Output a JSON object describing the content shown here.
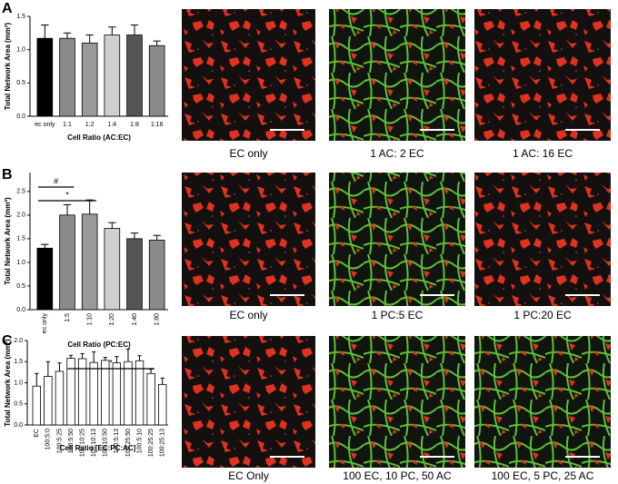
{
  "panels": [
    "A",
    "B",
    "C"
  ],
  "captions": [
    [
      "EC only",
      "1 AC: 2 EC",
      "1 AC: 16 EC"
    ],
    [
      "EC only",
      "1 PC:5 EC",
      "1 PC:20 EC"
    ],
    [
      "EC Only",
      "100 EC, 10 PC, 50 AC",
      "100 EC, 5 PC, 25 AC"
    ]
  ],
  "chart_data": [
    {
      "type": "bar",
      "ylabel": "Total Network Area (mm²)",
      "xlabel": "Cell Ratio (AC:EC)",
      "categories": [
        "ec only",
        "1:1",
        "1:2",
        "1:4",
        "1:8",
        "1:16"
      ],
      "values": [
        1.17,
        1.17,
        1.1,
        1.22,
        1.22,
        1.06
      ],
      "errors": [
        0.2,
        0.08,
        0.12,
        0.12,
        0.15,
        0.07
      ],
      "colors": [
        "#000000",
        "#8a8a8a",
        "#9a9a9a",
        "#cfcfcf",
        "#555555",
        "#8a8a8a"
      ],
      "ylim": [
        0,
        1.5
      ],
      "yticks": [
        {
          "value": 0,
          "label": "0.0"
        },
        {
          "value": 0.5,
          "label": "0.5"
        },
        {
          "value": 1,
          "label": "1.0"
        },
        {
          "value": 1.5,
          "label": "1.5"
        }
      ],
      "annotations": []
    },
    {
      "type": "bar",
      "ylabel": "Total Network Area (mm²)",
      "xlabel": "Cell Ratio (PC:EC)",
      "categories": [
        "ec only",
        "1:5",
        "1:10",
        "1:20",
        "1:40",
        "1:80"
      ],
      "values": [
        1.3,
        2.0,
        2.02,
        1.72,
        1.5,
        1.47
      ],
      "errors": [
        0.08,
        0.22,
        0.3,
        0.12,
        0.12,
        0.1
      ],
      "colors": [
        "#000000",
        "#8a8a8a",
        "#9a9a9a",
        "#cfcfcf",
        "#555555",
        "#8a8a8a"
      ],
      "ylim": [
        0,
        2.9
      ],
      "yticks": [
        {
          "value": 0,
          "label": "0.0"
        },
        {
          "value": 0.5,
          "label": "0.5"
        },
        {
          "value": 1,
          "label": "1.0"
        },
        {
          "value": 1.5,
          "label": "1.5"
        },
        {
          "value": 2,
          "label": "2.0"
        },
        {
          "value": 2.5,
          "label": "2.5"
        }
      ],
      "annotations": [
        "#",
        "*"
      ]
    },
    {
      "type": "bar",
      "ylabel": "Total Network Area (mm²)",
      "xlabel": "Cell Ratio [EC:PC:AC]",
      "categories": [
        "EC",
        "100:5:0",
        "100:5:25",
        "100:5:50",
        "100:10:25",
        "100:10:13",
        "100:10:50",
        "100:5:13",
        "100:25:50",
        "100:5:10",
        "100:25:25",
        "100:25:13"
      ],
      "values": [
        0.92,
        1.15,
        1.27,
        1.58,
        1.57,
        1.48,
        1.53,
        1.47,
        1.5,
        1.52,
        1.22,
        0.96
      ],
      "errors": [
        0.3,
        0.35,
        0.2,
        0.07,
        0.12,
        0.25,
        0.07,
        0.15,
        0.3,
        0.12,
        0.1,
        0.15
      ],
      "colors": [
        "#ffffff",
        "#ffffff",
        "#ffffff",
        "#ffffff",
        "#ffffff",
        "#ffffff",
        "#ffffff",
        "#ffffff",
        "#ffffff",
        "#ffffff",
        "#ffffff",
        "#ffffff"
      ],
      "ylim": [
        0,
        2
      ],
      "yticks": [
        {
          "value": 0,
          "label": "0.0"
        },
        {
          "value": 0.5,
          "label": "0.5"
        },
        {
          "value": 1,
          "label": "1.0"
        },
        {
          "value": 1.5,
          "label": "1.5"
        },
        {
          "value": 2,
          "label": "2.0"
        }
      ],
      "annotations": [
        "*"
      ]
    }
  ]
}
